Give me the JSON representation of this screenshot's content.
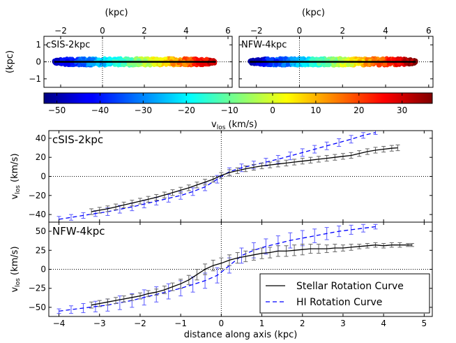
{
  "chart_data": [
    {
      "type": "scatter",
      "panel": "top-left",
      "title": "cSIS-2kpc",
      "xlabel": "(kpc)",
      "ylabel": "(kpc)",
      "xlim": [
        -2.8,
        6.2
      ],
      "ylim": [
        -1.5,
        1.5
      ],
      "xticks": [
        "−2",
        "0",
        "2",
        "4",
        "6"
      ],
      "yticks": [
        "−1",
        "0",
        "1"
      ],
      "x_axis_position": "top",
      "points": {
        "x_range": [
          -2.3,
          5.4
        ],
        "y_range": [
          -0.2,
          0.2
        ],
        "v_los_range": [
          -48,
          32
        ]
      },
      "line": {
        "x": [
          -2.3,
          5.4
        ],
        "y": [
          0,
          0
        ]
      },
      "refline_x": 0,
      "refline_y": 0
    },
    {
      "type": "scatter",
      "panel": "top-right",
      "title": "NFW-4kpc",
      "xlabel": "(kpc)",
      "xlim": [
        -2.8,
        6.2
      ],
      "ylim": [
        -1.5,
        1.5
      ],
      "xticks": [
        "−2",
        "0",
        "2",
        "4",
        "6"
      ],
      "x_axis_position": "top",
      "points": {
        "x_range": [
          -2.3,
          5.4
        ],
        "y_range": [
          -0.2,
          0.2
        ],
        "v_los_range": [
          -50,
          36
        ]
      },
      "line": {
        "x": [
          -2.3,
          5.4
        ],
        "y": [
          0,
          0
        ]
      },
      "refline_x": 0,
      "refline_y": 0
    },
    {
      "type": "heatmap",
      "panel": "colorbar",
      "xlabel": "v_los (km/s)",
      "xlabel_main": "v",
      "xlabel_sub": "los",
      "xlabel_unit": " (km/s)",
      "range": [
        -53,
        37
      ],
      "ticks": [
        -50,
        -40,
        -30,
        -20,
        -10,
        0,
        10,
        20,
        30
      ],
      "tick_labels": [
        "−50",
        "−40",
        "−30",
        "−20",
        "−10",
        "0",
        "10",
        "20",
        "30"
      ],
      "colormap": "jet"
    },
    {
      "type": "line",
      "panel": "middle",
      "title": "cSIS-2kpc",
      "ylabel": "v_los (km/s)",
      "xlim": [
        -4.25,
        5.2
      ],
      "ylim": [
        -48,
        48
      ],
      "yticks": [
        -40,
        -20,
        0,
        20,
        40
      ],
      "ytick_labels": [
        "−40",
        "−20",
        "0",
        "20",
        "40"
      ],
      "grid": false,
      "series": [
        {
          "name": "Stellar Rotation Curve",
          "color": "#000000",
          "dash": "solid",
          "x": [
            -3.2,
            -3.0,
            -2.8,
            -2.6,
            -2.4,
            -2.2,
            -2.0,
            -1.8,
            -1.6,
            -1.4,
            -1.2,
            -1.0,
            -0.8,
            -0.6,
            -0.4,
            -0.2,
            0.0,
            0.2,
            0.4,
            0.6,
            0.8,
            1.0,
            1.2,
            1.4,
            1.6,
            1.8,
            2.0,
            2.2,
            2.4,
            2.6,
            2.8,
            3.0,
            3.2,
            3.4,
            3.6,
            3.8,
            4.0,
            4.2,
            4.35
          ],
          "y": [
            -37,
            -35.5,
            -34,
            -32,
            -30,
            -28,
            -26,
            -24,
            -22,
            -19.5,
            -17,
            -14.5,
            -12,
            -9,
            -6,
            -3,
            1,
            4,
            6,
            8,
            9.5,
            11,
            12,
            13,
            14,
            15,
            16,
            17,
            18,
            19,
            20,
            21,
            22,
            24,
            26,
            27.5,
            28.5,
            29.5,
            30
          ],
          "err": [
            3,
            3,
            3,
            3,
            3,
            3,
            3,
            3,
            3,
            3,
            3,
            3,
            3,
            3,
            3,
            3,
            3,
            3,
            3,
            3,
            3,
            3,
            3,
            3,
            3,
            3,
            3,
            3,
            3,
            3,
            3,
            3,
            3,
            3,
            3,
            3,
            3,
            3,
            3
          ]
        },
        {
          "name": "HI Rotation Curve",
          "color": "#0000ff",
          "dash": "dashed",
          "x": [
            -4.0,
            -3.7,
            -3.4,
            -3.1,
            -2.8,
            -2.5,
            -2.2,
            -1.9,
            -1.6,
            -1.3,
            -1.0,
            -0.7,
            -0.4,
            -0.1,
            0.2,
            0.5,
            0.8,
            1.1,
            1.4,
            1.7,
            2.0,
            2.3,
            2.6,
            2.9,
            3.2,
            3.5,
            3.8
          ],
          "y": [
            -45,
            -43,
            -41,
            -39,
            -37,
            -34.5,
            -32,
            -29,
            -26,
            -23,
            -20,
            -16,
            -11,
            -3,
            5,
            9,
            12,
            15,
            18,
            21.5,
            25,
            28.5,
            32,
            35.5,
            39,
            43,
            46
          ],
          "err": [
            3,
            3,
            3,
            3,
            4,
            4,
            4,
            4,
            4,
            4,
            4,
            4,
            4,
            4,
            4,
            4,
            4,
            4,
            4,
            4,
            4,
            4,
            4,
            4,
            4,
            3,
            2
          ]
        }
      ]
    },
    {
      "type": "line",
      "panel": "bottom",
      "title": "NFW-4kpc",
      "xlabel": "distance along axis (kpc)",
      "ylabel": "v_los (km/s)",
      "xlim": [
        -4.25,
        5.2
      ],
      "ylim": [
        -62,
        62
      ],
      "xticks": [
        -4,
        -3,
        -2,
        -1,
        0,
        1,
        2,
        3,
        4,
        5
      ],
      "xtick_labels": [
        "−4",
        "−3",
        "−2",
        "−1",
        "0",
        "1",
        "2",
        "3",
        "4",
        "5"
      ],
      "yticks": [
        -50,
        -25,
        0,
        25,
        50
      ],
      "ytick_labels": [
        "−50",
        "−25",
        "0",
        "25",
        "50"
      ],
      "legend_position": "lower-right",
      "grid": false,
      "series": [
        {
          "name": "Stellar Rotation Curve",
          "color": "#000000",
          "dash": "solid",
          "x": [
            -3.2,
            -3.0,
            -2.8,
            -2.6,
            -2.4,
            -2.2,
            -2.0,
            -1.8,
            -1.6,
            -1.4,
            -1.2,
            -1.0,
            -0.8,
            -0.6,
            -0.4,
            -0.2,
            0.0,
            0.2,
            0.4,
            0.6,
            0.8,
            1.0,
            1.2,
            1.4,
            1.6,
            1.8,
            2.0,
            2.2,
            2.4,
            2.6,
            2.8,
            3.0,
            3.2,
            3.4,
            3.6,
            3.8,
            4.0,
            4.2,
            4.4,
            4.6,
            4.7
          ],
          "y": [
            -47,
            -45,
            -43,
            -41,
            -39,
            -37,
            -35,
            -32,
            -30,
            -27,
            -23,
            -19,
            -14,
            -7,
            0,
            5,
            8,
            12,
            15,
            17,
            19,
            21,
            22,
            24,
            24,
            25,
            26,
            27,
            27,
            27,
            28,
            28,
            29,
            30,
            31,
            32,
            31,
            32,
            32,
            32,
            32
          ],
          "err": [
            4,
            4,
            4,
            4,
            4,
            4,
            4,
            4,
            4,
            5,
            5,
            6,
            6,
            7,
            7,
            7,
            7,
            7,
            7,
            7,
            7,
            7,
            7,
            7,
            7,
            7,
            7,
            6,
            6,
            5,
            5,
            4,
            4,
            3,
            3,
            3,
            3,
            3,
            3,
            2,
            2
          ]
        },
        {
          "name": "HI Rotation Curve",
          "color": "#0000ff",
          "dash": "dashed",
          "x": [
            -4.0,
            -3.7,
            -3.4,
            -3.1,
            -2.8,
            -2.5,
            -2.2,
            -1.9,
            -1.6,
            -1.3,
            -1.0,
            -0.7,
            -0.4,
            -0.1,
            0.2,
            0.5,
            0.8,
            1.1,
            1.4,
            1.7,
            2.0,
            2.3,
            2.6,
            2.9,
            3.2,
            3.5,
            3.8
          ],
          "y": [
            -55,
            -53,
            -51,
            -49,
            -47,
            -44,
            -41,
            -37,
            -33,
            -29,
            -25,
            -20,
            -15,
            -8,
            5,
            18,
            25,
            30,
            34,
            38,
            41,
            44,
            47,
            50,
            52,
            54,
            56
          ],
          "err": [
            3,
            5,
            6,
            7,
            8,
            9,
            9,
            10,
            10,
            10,
            10,
            10,
            10,
            10,
            10,
            10,
            10,
            10,
            10,
            10,
            10,
            9,
            8,
            7,
            6,
            5,
            3
          ]
        }
      ]
    }
  ]
}
